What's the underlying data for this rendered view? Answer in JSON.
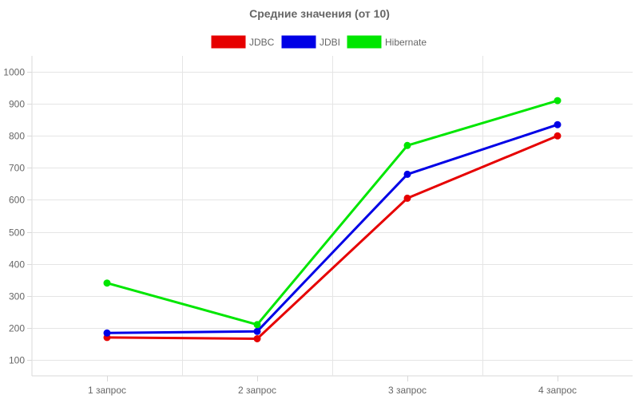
{
  "chart_data": {
    "type": "line",
    "title": "Средние значения (от 10)",
    "xlabel": "",
    "ylabel": "",
    "categories": [
      "1 запрос",
      "2 запрос",
      "3 запрос",
      "4 запрос"
    ],
    "ylim": [
      50,
      1050
    ],
    "yticks": [
      100,
      200,
      300,
      400,
      500,
      600,
      700,
      800,
      900,
      1000
    ],
    "grid": true,
    "legend": "top-center",
    "series": [
      {
        "name": "JDBC",
        "color": "#e60000",
        "values": [
          170,
          166,
          605,
          800
        ]
      },
      {
        "name": "JDBI",
        "color": "#0000e6",
        "values": [
          184,
          189,
          680,
          835
        ]
      },
      {
        "name": "Hibernate",
        "color": "#00e600",
        "values": [
          340,
          210,
          770,
          910
        ]
      }
    ]
  }
}
